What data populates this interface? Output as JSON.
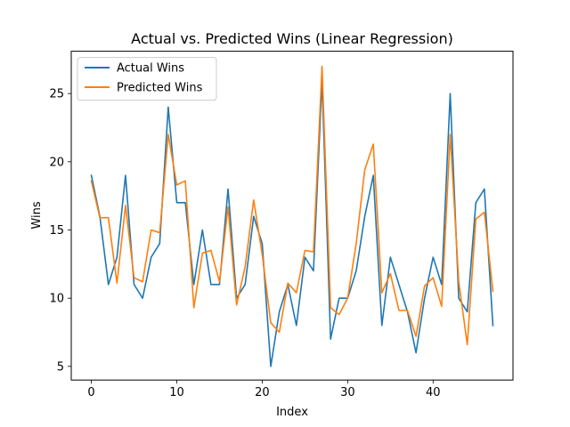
{
  "chart_data": {
    "type": "line",
    "title": "Actual vs. Predicted Wins (Linear Regression)",
    "xlabel": "Index",
    "ylabel": "Wins",
    "xlim": [
      -2.35,
      49.35
    ],
    "ylim": [
      4.0,
      28.1
    ],
    "xticks": [
      0,
      10,
      20,
      30,
      40
    ],
    "yticks": [
      5,
      10,
      15,
      20,
      25
    ],
    "legend_position": "top-left",
    "grid": false,
    "x": [
      0,
      1,
      2,
      3,
      4,
      5,
      6,
      7,
      8,
      9,
      10,
      11,
      12,
      13,
      14,
      15,
      16,
      17,
      18,
      19,
      20,
      21,
      22,
      23,
      24,
      25,
      26,
      27,
      28,
      29,
      30,
      31,
      32,
      33,
      34,
      35,
      36,
      37,
      38,
      39,
      40,
      41,
      42,
      43,
      44,
      45,
      46,
      47
    ],
    "series": [
      {
        "name": "Actual Wins",
        "color": "#1f77b4",
        "values": [
          19,
          16,
          11,
          13,
          19,
          11,
          10,
          13,
          14,
          24,
          17,
          17,
          11,
          15,
          11,
          11,
          18,
          10,
          11,
          16,
          14,
          5,
          9,
          11,
          8,
          13,
          12,
          26,
          7,
          10,
          10,
          12,
          16,
          19,
          8,
          13,
          11,
          9,
          6,
          10,
          13,
          11,
          25,
          10,
          9,
          17,
          18,
          8
        ]
      },
      {
        "name": "Predicted Wins",
        "color": "#ff7f0e",
        "values": [
          18.6,
          15.9,
          15.9,
          11.1,
          16.8,
          11.5,
          11.2,
          15.0,
          14.8,
          22.0,
          18.3,
          18.6,
          9.3,
          13.3,
          13.5,
          11.2,
          16.7,
          9.5,
          12.3,
          17.2,
          13.2,
          8.2,
          7.5,
          11.1,
          10.4,
          13.5,
          13.4,
          27.0,
          9.3,
          8.8,
          10.0,
          14.0,
          19.4,
          21.3,
          10.4,
          11.8,
          9.1,
          9.1,
          7.2,
          10.9,
          11.5,
          9.4,
          22.0,
          11.2,
          6.6,
          15.8,
          16.3,
          10.5
        ]
      }
    ]
  }
}
